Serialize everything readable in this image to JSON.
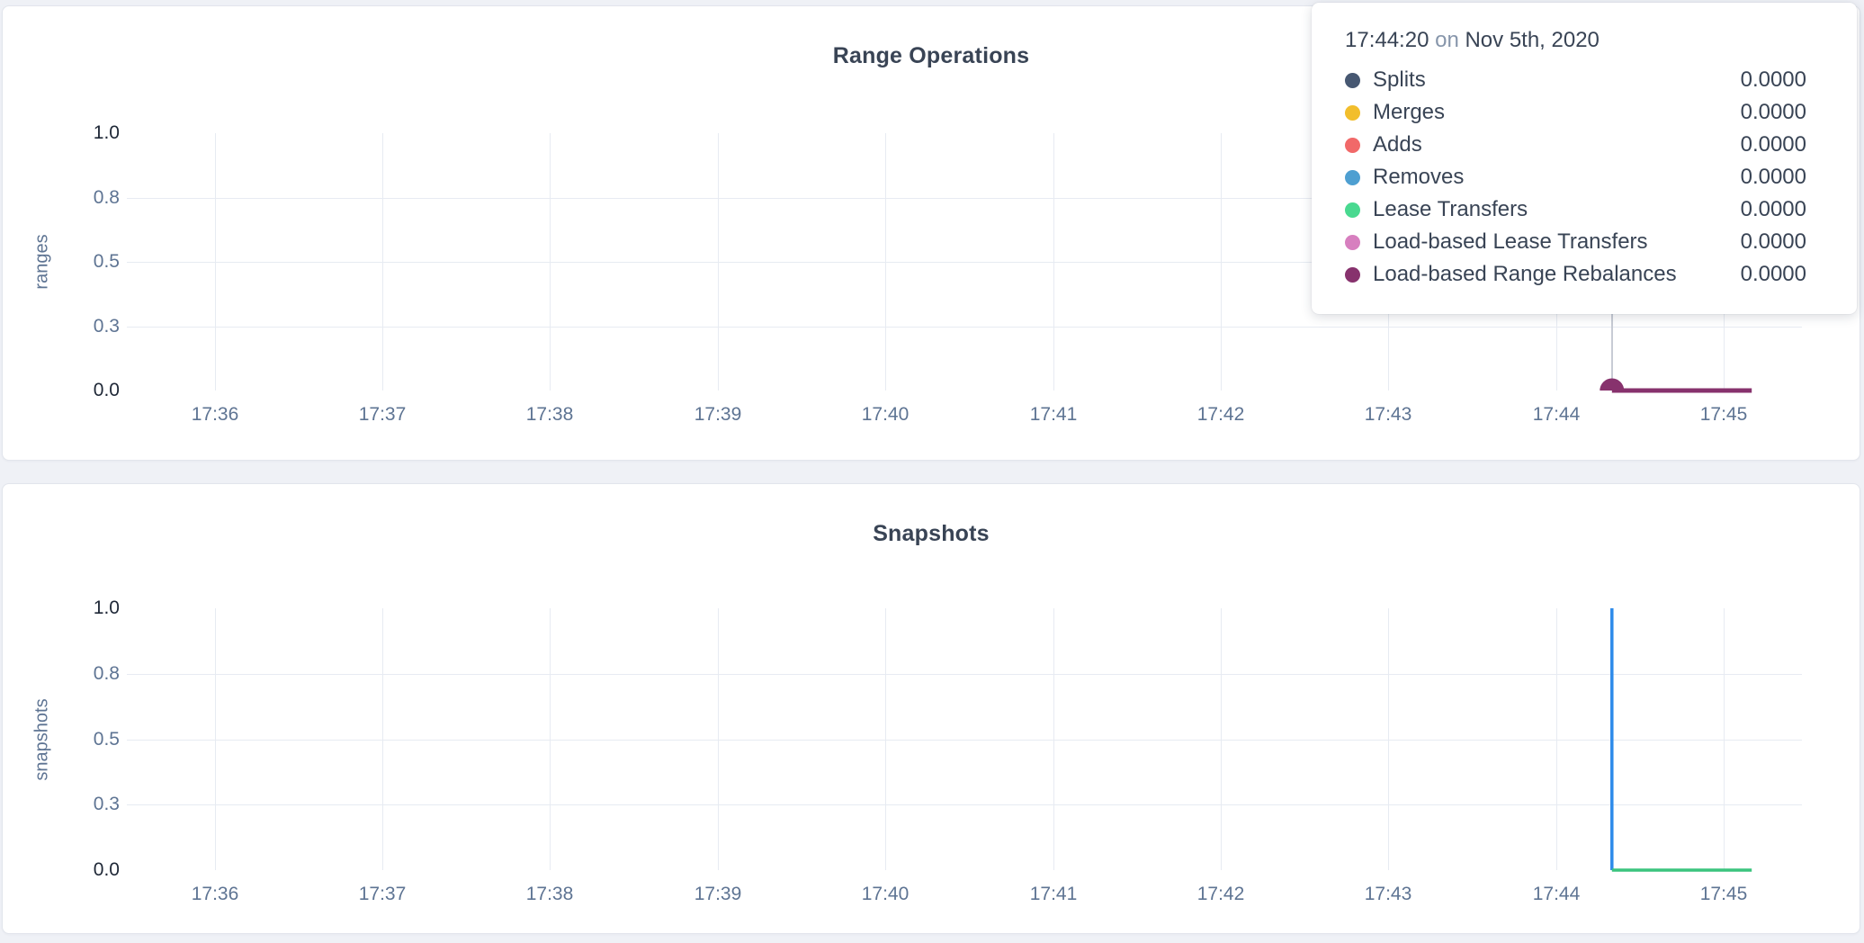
{
  "page": {
    "background_color": "#eff1f6",
    "card_background": "#ffffff"
  },
  "tooltip": {
    "time": "17:44:20",
    "on_word": "on",
    "date": "Nov 5th, 2020",
    "rows": [
      {
        "label": "Splits",
        "value": "0.0000",
        "color": "#475872"
      },
      {
        "label": "Merges",
        "value": "0.0000",
        "color": "#F2BE2C"
      },
      {
        "label": "Adds",
        "value": "0.0000",
        "color": "#F16969"
      },
      {
        "label": "Removes",
        "value": "0.0000",
        "color": "#4E9FD1"
      },
      {
        "label": "Lease Transfers",
        "value": "0.0000",
        "color": "#49D990"
      },
      {
        "label": "Load-based Lease Transfers",
        "value": "0.0000",
        "color": "#D77FBF"
      },
      {
        "label": "Load-based Range Rebalances",
        "value": "0.0000",
        "color": "#87326D"
      }
    ]
  },
  "chart_data": [
    {
      "type": "line",
      "title": "Range Operations",
      "ylabel": "ranges",
      "ylim": [
        0,
        1
      ],
      "grid": true,
      "y_tick_labels": [
        "1.0",
        "0.8",
        "0.5",
        "0.3",
        "0.0"
      ],
      "x_tick_labels": [
        "17:36",
        "17:37",
        "17:38",
        "17:39",
        "17:40",
        "17:41",
        "17:42",
        "17:43",
        "17:44",
        "17:45"
      ],
      "hover": {
        "time": "17:44:20",
        "crosshair": true
      },
      "series": [
        {
          "name": "Load-based Range Rebalances",
          "color": "#87326D",
          "stroke_width": 5,
          "points": [
            [
              "17:44:20",
              0
            ],
            [
              "17:45:10",
              0
            ]
          ],
          "hover_dot": [
            "17:44:20",
            0
          ]
        }
      ]
    },
    {
      "type": "line",
      "title": "Snapshots",
      "ylabel": "snapshots",
      "ylim": [
        0,
        1
      ],
      "grid": true,
      "y_tick_labels": [
        "1.0",
        "0.8",
        "0.5",
        "0.3",
        "0.0"
      ],
      "x_tick_labels": [
        "17:36",
        "17:37",
        "17:38",
        "17:39",
        "17:40",
        "17:41",
        "17:42",
        "17:43",
        "17:44",
        "17:45"
      ],
      "series": [
        {
          "name": "series-blue",
          "color": "#2E8BEA",
          "stroke_width": 3.5,
          "points": [
            [
              "17:44:20",
              1
            ],
            [
              "17:44:20",
              0
            ]
          ]
        },
        {
          "name": "series-green",
          "color": "#3BC47E",
          "stroke_width": 3.5,
          "points": [
            [
              "17:44:20",
              0
            ],
            [
              "17:45:10",
              0
            ]
          ]
        }
      ]
    }
  ]
}
